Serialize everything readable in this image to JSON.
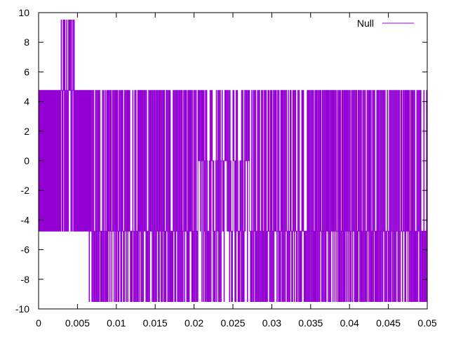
{
  "chart_data": {
    "type": "line",
    "title": "",
    "xlabel": "",
    "ylabel": "",
    "xlim": [
      0,
      0.05
    ],
    "ylim": [
      -10,
      10
    ],
    "x_ticks": [
      0,
      0.005,
      0.01,
      0.015,
      0.02,
      0.025,
      0.03,
      0.035,
      0.04,
      0.045,
      0.05
    ],
    "x_tick_labels": [
      "0",
      "0.005",
      "0.01",
      "0.015",
      "0.02",
      "0.025",
      "0.03",
      "0.035",
      "0.04",
      "0.045",
      "0.05"
    ],
    "y_ticks": [
      -10,
      -8,
      -6,
      -4,
      -2,
      0,
      2,
      4,
      6,
      8,
      10
    ],
    "y_tick_labels": [
      "-10",
      "-8",
      "-6",
      "-4",
      "-2",
      "0",
      "2",
      "4",
      "6",
      "8",
      "10"
    ],
    "grid": false,
    "legend": {
      "position": "top-right",
      "entries": [
        "Null"
      ]
    },
    "series": [
      {
        "name": "Null",
        "color": "#9400d3",
        "levels": [
          -9.5,
          -4.75,
          0,
          4.75,
          9.5
        ],
        "segments": [
          {
            "x_range": [
              0,
              0.0027
            ],
            "switch_every": 5e-05,
            "levels": [
              4.75,
              -4.75
            ]
          },
          {
            "x_range": [
              0.0027,
              0.0046
            ],
            "switch_every": 5e-05,
            "levels": [
              9.5,
              4.75,
              -4.75
            ]
          },
          {
            "x_range": [
              0.0046,
              0.0065
            ],
            "switch_every": 5e-05,
            "levels": [
              4.75,
              -4.75
            ]
          },
          {
            "x_range": [
              0.0065,
              0.0205
            ],
            "switch_every": 5e-05,
            "levels": [
              4.75,
              -4.75,
              -9.5
            ]
          },
          {
            "x_range": [
              0.0205,
              0.0272
            ],
            "switch_every": 5e-05,
            "levels": [
              4.75,
              0,
              -4.75,
              -9.5
            ]
          },
          {
            "x_range": [
              0.0272,
              0.032
            ],
            "switch_every": 5e-05,
            "levels": [
              4.75,
              -4.75,
              -9.5
            ]
          },
          {
            "x_range": [
              0.032,
              0.05
            ],
            "switch_every": 5e-05,
            "levels": [
              4.75,
              -4.75,
              -9.5
            ]
          }
        ]
      }
    ]
  }
}
